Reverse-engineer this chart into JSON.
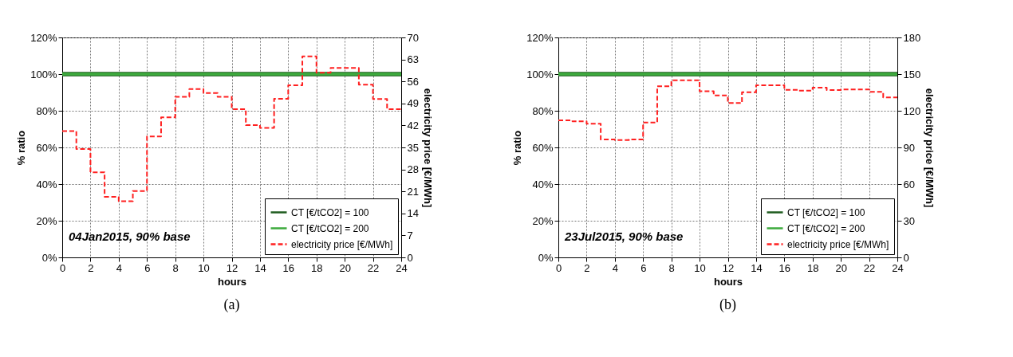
{
  "chart_data": [
    {
      "type": "line",
      "title": "(a)",
      "xlabel": "hours",
      "ylabel": "% ratio",
      "y2label": "electricity price [€/MWh]",
      "annotations": [
        "04Jan2015, 90% base"
      ],
      "xlim": [
        0,
        24
      ],
      "xticks": [
        0,
        2,
        4,
        6,
        8,
        10,
        12,
        14,
        16,
        18,
        20,
        22,
        24
      ],
      "ylim": [
        0,
        120
      ],
      "yticks": [
        {
          "value": 0,
          "label": "0%"
        },
        {
          "value": 20,
          "label": "20%"
        },
        {
          "value": 40,
          "label": "40%"
        },
        {
          "value": 60,
          "label": "60%"
        },
        {
          "value": 80,
          "label": "80%"
        },
        {
          "value": 100,
          "label": "100%"
        },
        {
          "value": 120,
          "label": "120%"
        }
      ],
      "y2lim": [
        0,
        70
      ],
      "y2ticks": [
        0,
        7,
        14,
        21,
        28,
        35,
        42,
        49,
        56,
        63,
        70
      ],
      "grid": true,
      "legend": "bottom right",
      "series": [
        {
          "name": "CT [€/tCO2] = 100",
          "type": "line",
          "color": "#1e5b1e",
          "line_style": "solid",
          "x": [
            0,
            24
          ],
          "values": [
            100,
            100
          ]
        },
        {
          "name": "CT [€/tCO2] = 200",
          "type": "line",
          "color": "#3daa3d",
          "line_style": "solid",
          "x": [
            0,
            24
          ],
          "values": [
            100,
            100
          ]
        },
        {
          "name": "electricity price [€/MWh]",
          "type": "step",
          "axis": "y2",
          "color": "#ff2020",
          "line_style": "dashed",
          "x": [
            0,
            1,
            2,
            3,
            4,
            5,
            6,
            7,
            8,
            9,
            10,
            11,
            12,
            13,
            14,
            15,
            16,
            17,
            18,
            19,
            20,
            21,
            22,
            23,
            24
          ],
          "values": [
            40.2,
            34.5,
            27.1,
            19.3,
            17.9,
            21.1,
            38.5,
            44.6,
            51.1,
            53.6,
            52.3,
            51.1,
            47.2,
            42.1,
            41.2,
            50.5,
            54.8,
            64.0,
            58.8,
            60.3,
            60.3,
            55.0,
            50.4,
            47.2,
            47.2
          ]
        }
      ]
    },
    {
      "type": "line",
      "title": "(b)",
      "xlabel": "hours",
      "ylabel": "% ratio",
      "y2label": "electricity price [€/MWh]",
      "annotations": [
        "23Jul2015, 90% base"
      ],
      "xlim": [
        0,
        24
      ],
      "xticks": [
        0,
        2,
        4,
        6,
        8,
        10,
        12,
        14,
        16,
        18,
        20,
        22,
        24
      ],
      "ylim": [
        0,
        120
      ],
      "yticks": [
        {
          "value": 0,
          "label": "0%"
        },
        {
          "value": 20,
          "label": "20%"
        },
        {
          "value": 40,
          "label": "40%"
        },
        {
          "value": 60,
          "label": "60%"
        },
        {
          "value": 80,
          "label": "80%"
        },
        {
          "value": 100,
          "label": "100%"
        },
        {
          "value": 120,
          "label": "120%"
        }
      ],
      "y2lim": [
        0,
        180
      ],
      "y2ticks": [
        0,
        30,
        60,
        90,
        120,
        150,
        180
      ],
      "grid": true,
      "legend": "bottom right",
      "series": [
        {
          "name": "CT [€/tCO2] = 100",
          "type": "line",
          "color": "#1e5b1e",
          "line_style": "solid",
          "x": [
            0,
            24
          ],
          "values": [
            100,
            100
          ]
        },
        {
          "name": "CT [€/tCO2] = 200",
          "type": "line",
          "color": "#3daa3d",
          "line_style": "solid",
          "x": [
            0,
            24
          ],
          "values": [
            100,
            100
          ]
        },
        {
          "name": "electricity price [€/MWh]",
          "type": "step",
          "axis": "y2",
          "color": "#ff2020",
          "line_style": "dashed",
          "x": [
            0,
            1,
            2,
            3,
            4,
            5,
            6,
            7,
            8,
            9,
            10,
            11,
            12,
            13,
            14,
            15,
            16,
            17,
            18,
            19,
            20,
            21,
            22,
            23,
            24
          ],
          "values": [
            112.2,
            111.3,
            109.4,
            96.6,
            96.1,
            96.6,
            110.3,
            140,
            144.9,
            145,
            135.9,
            132.5,
            126.3,
            135.2,
            140.8,
            140.8,
            137.2,
            136.5,
            138.9,
            137,
            137.4,
            137.4,
            135.5,
            131,
            131
          ]
        }
      ]
    }
  ]
}
